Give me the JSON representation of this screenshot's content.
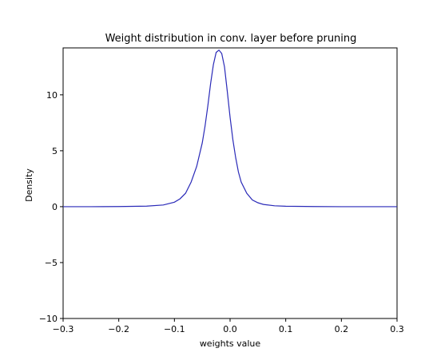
{
  "chart_data": {
    "type": "line",
    "title": "Weight distribution in conv. layer before pruning",
    "xlabel": "weights value",
    "ylabel": "Density",
    "xlim": [
      -0.3,
      0.3
    ],
    "ylim": [
      -10,
      14.2
    ],
    "xticks": [
      -0.3,
      -0.2,
      -0.1,
      0.0,
      0.1,
      0.2,
      0.3
    ],
    "xtick_labels": [
      "−0.3",
      "−0.2",
      "−0.1",
      "0.0",
      "0.1",
      "0.2",
      "0.3"
    ],
    "yticks": [
      -10,
      -5,
      0,
      5,
      10
    ],
    "ytick_labels": [
      "−10",
      "−5",
      "0",
      "5",
      "10"
    ],
    "grid": false,
    "series": [
      {
        "color": "#2a2ab8",
        "x": [
          -0.3,
          -0.25,
          -0.2,
          -0.15,
          -0.12,
          -0.1,
          -0.09,
          -0.08,
          -0.07,
          -0.06,
          -0.05,
          -0.045,
          -0.04,
          -0.035,
          -0.03,
          -0.025,
          -0.02,
          -0.015,
          -0.01,
          -0.005,
          0.0,
          0.005,
          0.01,
          0.015,
          0.02,
          0.03,
          0.04,
          0.05,
          0.06,
          0.08,
          0.1,
          0.15,
          0.2,
          0.25,
          0.3
        ],
        "values": [
          0.0,
          0.0,
          0.01,
          0.05,
          0.15,
          0.4,
          0.7,
          1.2,
          2.2,
          3.6,
          5.7,
          7.2,
          9.0,
          11.0,
          12.7,
          13.8,
          14.0,
          13.7,
          12.5,
          10.3,
          8.0,
          6.0,
          4.4,
          3.1,
          2.2,
          1.2,
          0.6,
          0.35,
          0.2,
          0.08,
          0.04,
          0.01,
          0.0,
          0.0,
          0.0
        ]
      }
    ]
  }
}
